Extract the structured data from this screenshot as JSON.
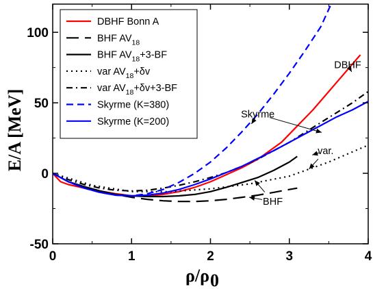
{
  "chart_data": {
    "type": "line",
    "xlabel": "ρ/ρ",
    "xlabel_sub": "0",
    "ylabel": "E/A [MeV]",
    "xlim": [
      0,
      4
    ],
    "ylim": [
      -50,
      120
    ],
    "xticks": [
      0,
      1,
      2,
      3,
      4
    ],
    "yticks": [
      -50,
      0,
      50,
      100
    ],
    "grid": false,
    "legend_position": "top-left",
    "series": [
      {
        "name": "DBHF Bonn A",
        "legend": [
          "DBHF Bonn A"
        ],
        "color": "#ff0000",
        "dash": "solid",
        "x": [
          0,
          0.1,
          0.2,
          0.4,
          0.6,
          0.8,
          1.0,
          1.2,
          1.4,
          1.6,
          1.8,
          2.0,
          2.2,
          2.4,
          2.6,
          2.9,
          3.3,
          3.9
        ],
        "y": [
          0,
          -6,
          -8,
          -10.5,
          -12.5,
          -14.5,
          -16,
          -16,
          -15,
          -13,
          -10,
          -6,
          -1,
          4,
          10,
          22,
          45,
          84
        ]
      },
      {
        "name": "BHF AV18",
        "legend": [
          "BHF AV",
          "18",
          ""
        ],
        "color": "#000000",
        "dash": "longdash",
        "x": [
          0,
          0.2,
          0.4,
          0.6,
          0.8,
          1.0,
          1.2,
          1.4,
          1.6,
          1.8,
          2.0,
          2.2,
          2.4,
          2.6,
          2.8,
          3.0,
          3.1
        ],
        "y": [
          0,
          -6,
          -9.5,
          -12.5,
          -15,
          -17,
          -18.5,
          -19.5,
          -20,
          -20,
          -19.5,
          -18.5,
          -17,
          -15.5,
          -13.5,
          -11.5,
          -10.5
        ]
      },
      {
        "name": "BHF AV18+3-BF",
        "legend": [
          "BHF AV",
          "18",
          "+3-BF"
        ],
        "color": "#000000",
        "dash": "solid",
        "x": [
          0,
          0.2,
          0.4,
          0.6,
          0.8,
          1.0,
          1.2,
          1.4,
          1.6,
          1.8,
          2.0,
          2.2,
          2.4,
          2.6,
          2.8,
          3.0,
          3.1
        ],
        "y": [
          0,
          -6,
          -9.5,
          -12.5,
          -15,
          -16,
          -16.5,
          -16.5,
          -16,
          -15,
          -13,
          -10,
          -6.5,
          -3,
          2,
          8,
          12
        ]
      },
      {
        "name": "var AV18+δv",
        "legend": [
          "var AV",
          "18",
          "+δv"
        ],
        "color": "#000000",
        "dash": "dotted",
        "x": [
          0,
          0.5,
          1.0,
          1.5,
          2.0,
          2.5,
          3.0,
          3.5,
          4.0
        ],
        "y": [
          0,
          -8.5,
          -13,
          -13,
          -11,
          -7.5,
          -2,
          8,
          20
        ]
      },
      {
        "name": "var AV18+δv+3-BF",
        "legend": [
          "var AV",
          "18",
          "+δv+3-BF"
        ],
        "color": "#000000",
        "dash": "dashdot",
        "x": [
          0,
          0.2,
          0.4,
          0.6,
          0.8,
          1.0,
          1.2,
          1.4,
          1.6,
          1.8,
          2.0,
          2.2,
          2.4,
          2.6,
          2.8,
          3.0,
          3.2,
          3.4,
          3.6,
          3.8,
          4.0
        ],
        "y": [
          0,
          -4.5,
          -8,
          -10.5,
          -12,
          -12.5,
          -12,
          -10.5,
          -8.5,
          -6,
          -3,
          0.5,
          5,
          10,
          16,
          22,
          29,
          36,
          43,
          50,
          58
        ]
      },
      {
        "name": "Skyrme (K=380)",
        "legend": [
          "Skyrme (K=380)"
        ],
        "color": "#0000ff",
        "dash": "dashed",
        "x": [
          0,
          0.2,
          0.4,
          0.6,
          0.8,
          1.0,
          1.2,
          1.4,
          1.6,
          1.8,
          2.0,
          2.2,
          2.4,
          2.6,
          2.8,
          3.0,
          3.2,
          3.4,
          3.53
        ],
        "y": [
          0,
          -6,
          -10.5,
          -13.5,
          -15.5,
          -16,
          -14.5,
          -11.5,
          -6.5,
          0,
          8,
          18,
          29.5,
          42,
          56,
          71,
          87,
          104,
          120
        ]
      },
      {
        "name": "Skyrme (K=200)",
        "legend": [
          "Skyrme (K=200)"
        ],
        "color": "#0000ff",
        "dash": "solid",
        "x": [
          0,
          0.2,
          0.4,
          0.6,
          0.8,
          1.0,
          1.2,
          1.4,
          1.6,
          1.8,
          2.0,
          2.2,
          2.4,
          2.6,
          2.8,
          3.0,
          3.2,
          3.4,
          3.6,
          3.8,
          4.0
        ],
        "y": [
          0,
          -6,
          -10.5,
          -13.5,
          -15.5,
          -16,
          -15.5,
          -14,
          -11.5,
          -8,
          -4,
          0.5,
          5,
          10.5,
          16,
          22,
          28,
          34,
          40,
          45,
          51
        ]
      }
    ],
    "annotations": [
      {
        "text": "DBHF",
        "at": [
          3.74,
          77
        ],
        "arrow_to": [
          3.79,
          72
        ]
      },
      {
        "text": "Skyrme",
        "at": [
          2.6,
          42
        ],
        "arrows_to": [
          [
            2.52,
            35
          ],
          [
            3.41,
            29
          ]
        ]
      },
      {
        "text": "var.",
        "at": [
          3.46,
          16
        ],
        "arrows_to": [
          [
            3.29,
            13
          ],
          [
            3.25,
            3
          ]
        ]
      },
      {
        "text": "BHF",
        "at": [
          2.79,
          -20
        ],
        "arrows_to": [
          [
            2.49,
            -17
          ],
          [
            2.56,
            -5
          ]
        ]
      }
    ]
  }
}
